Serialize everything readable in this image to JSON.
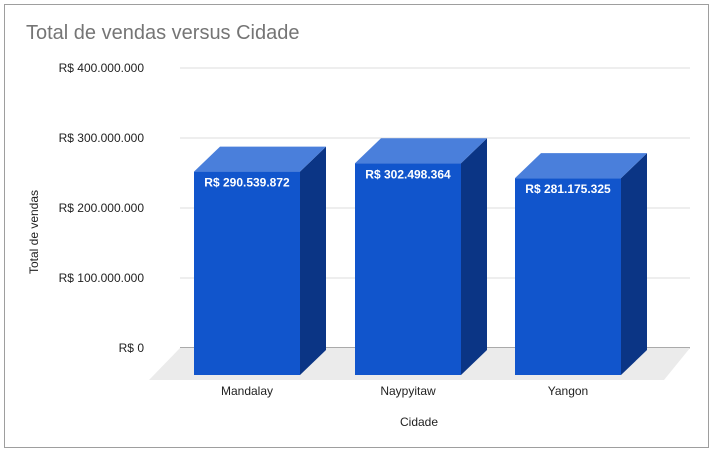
{
  "chart_data": {
    "type": "bar",
    "title": "Total de vendas versus Cidade",
    "xlabel": "Cidade",
    "ylabel": "Total de vendas",
    "categories": [
      "Mandalay",
      "Naypyitaw",
      "Yangon"
    ],
    "values": [
      290539872,
      302498364,
      281175325
    ],
    "data_labels": [
      "R$ 290.539.872",
      "R$ 302.498.364",
      "R$ 281.175.325"
    ],
    "ylim": [
      0,
      400000000
    ],
    "yticks": [
      {
        "value": 0,
        "label": "R$ 0"
      },
      {
        "value": 100000000,
        "label": "R$ 100.000.000"
      },
      {
        "value": 200000000,
        "label": "R$ 200.000.000"
      },
      {
        "value": 300000000,
        "label": "R$ 300.000.000"
      },
      {
        "value": 400000000,
        "label": "R$ 400.000.000"
      }
    ],
    "grid": true,
    "legend": "none",
    "style": "3d",
    "colors": {
      "front": "#1155cc",
      "side": "#0b3585",
      "top": "#4a7fdb",
      "floor": "#ebebeb",
      "grid": "#dddddd"
    }
  }
}
